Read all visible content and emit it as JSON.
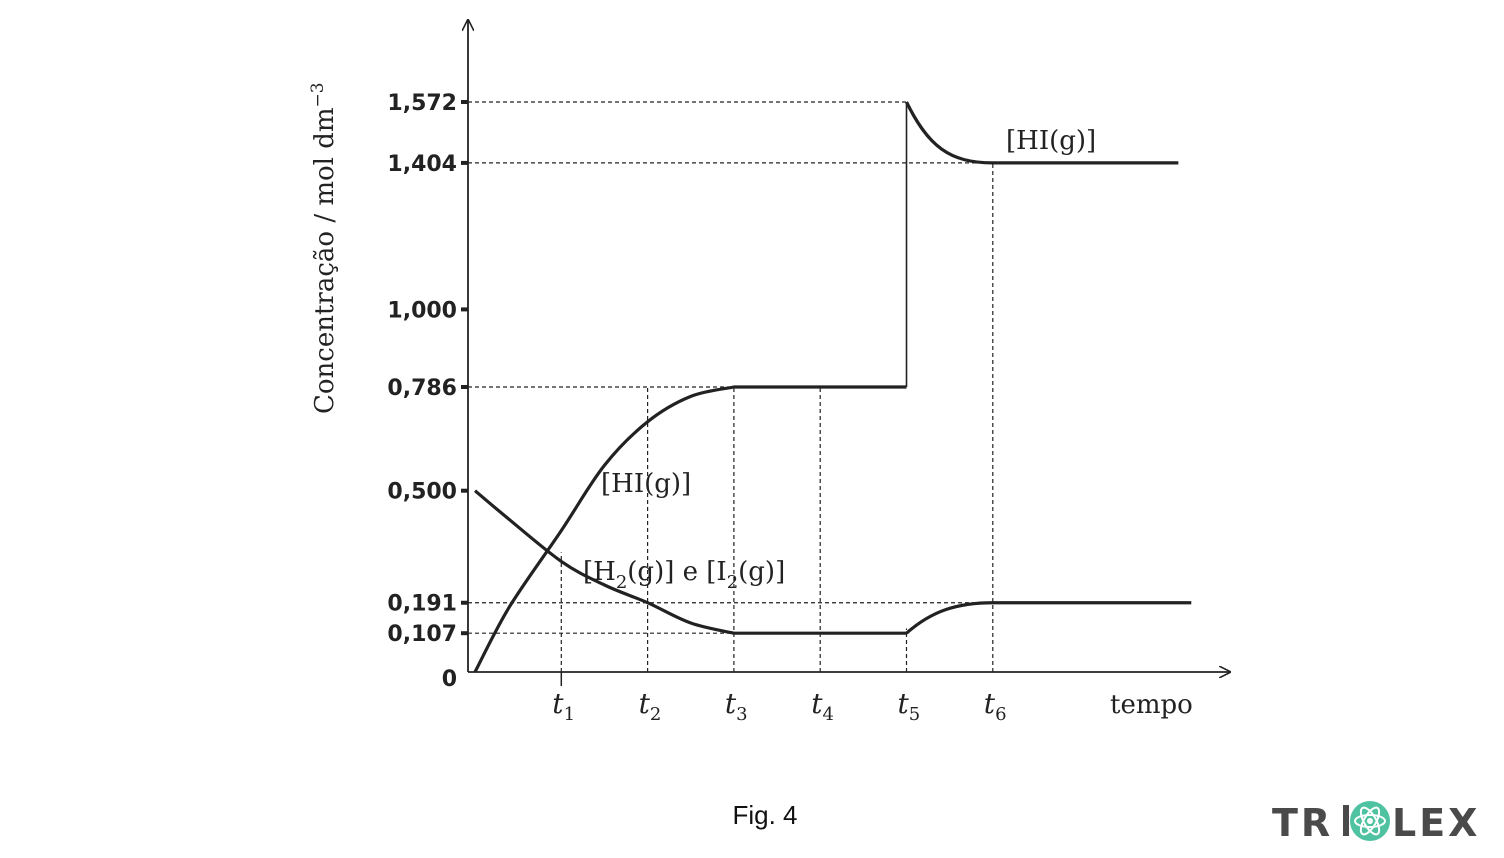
{
  "figure_caption": "Fig. 4",
  "logo_text": "TRILEX",
  "chart_data": {
    "type": "line",
    "ylabel": "Concentração / mol dm",
    "ylabel_superscript": "−3",
    "xlabel": "tempo",
    "y_ticks": [
      "1,572",
      "1,404",
      "1,000",
      "0,786",
      "0,500",
      "0,191",
      "0,107",
      "0"
    ],
    "y_tick_values": [
      1.572,
      1.404,
      1.0,
      0.786,
      0.5,
      0.191,
      0.107,
      0
    ],
    "x_ticks": [
      {
        "base": "t",
        "sub": "1",
        "t": 1
      },
      {
        "base": "t",
        "sub": "2",
        "t": 2
      },
      {
        "base": "t",
        "sub": "3",
        "t": 3
      },
      {
        "base": "t",
        "sub": "4",
        "t": 4
      },
      {
        "base": "t",
        "sub": "5",
        "t": 5
      },
      {
        "base": "t",
        "sub": "6",
        "t": 6
      }
    ],
    "annotations": {
      "hi_lower": "[HI(g)]",
      "hi_upper": "[HI(g)]",
      "h2_i2_parts": [
        "[H",
        "2",
        "(g)] e [I",
        "2",
        "(g)]"
      ]
    },
    "series": [
      {
        "key": "HI",
        "points": [
          [
            0,
            0
          ],
          [
            1,
            0.39
          ],
          [
            2,
            0.69
          ],
          [
            3,
            0.786
          ],
          [
            5,
            0.786
          ],
          [
            5,
            1.572
          ],
          [
            5.25,
            1.47
          ],
          [
            6,
            1.404
          ],
          [
            8.15,
            1.404
          ]
        ]
      },
      {
        "key": "H2_I2",
        "points": [
          [
            0,
            0.5
          ],
          [
            1,
            0.305
          ],
          [
            2,
            0.191
          ],
          [
            3,
            0.107
          ],
          [
            5,
            0.107
          ],
          [
            5.4,
            0.17
          ],
          [
            6,
            0.191
          ],
          [
            8.3,
            0.191
          ]
        ]
      }
    ],
    "grid": false,
    "legend": "none"
  }
}
